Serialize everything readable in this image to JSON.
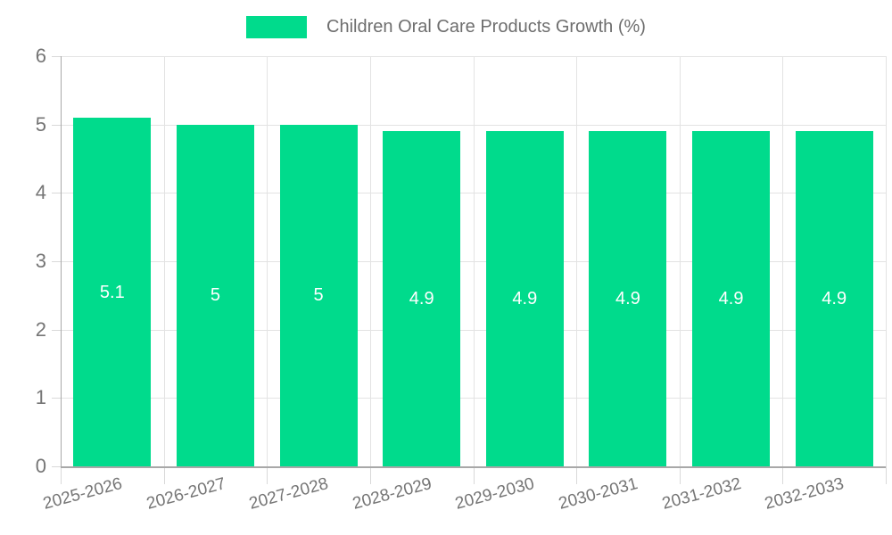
{
  "legend": {
    "label": "Children Oral Care Products Growth (%)"
  },
  "colors": {
    "bar": "#00DB8C",
    "grid": "#E3E3E3",
    "tick": "#D9D9D9",
    "axis": "#A8A8A8",
    "tick_label": "#757575",
    "legend_text": "#6E6E6E",
    "value_label": "#FFFFFF",
    "background": "#FFFFFF"
  },
  "chart_data": {
    "type": "bar",
    "title": "Children Oral Care Products Growth (%)",
    "categories": [
      "2025-2026",
      "2026-2027",
      "2027-2028",
      "2028-2029",
      "2029-2030",
      "2030-2031",
      "2031-2032",
      "2032-2033"
    ],
    "values": [
      5.1,
      5,
      5,
      4.9,
      4.9,
      4.9,
      4.9,
      4.9
    ],
    "value_labels": [
      "5.1",
      "5",
      "5",
      "4.9",
      "4.9",
      "4.9",
      "4.9",
      "4.9"
    ],
    "xlabel": "",
    "ylabel": "",
    "ylim": [
      0,
      6
    ],
    "yticks": [
      0,
      1,
      2,
      3,
      4,
      5,
      6
    ],
    "grid": true,
    "legend_position": "top",
    "bar_label_position": "center"
  }
}
